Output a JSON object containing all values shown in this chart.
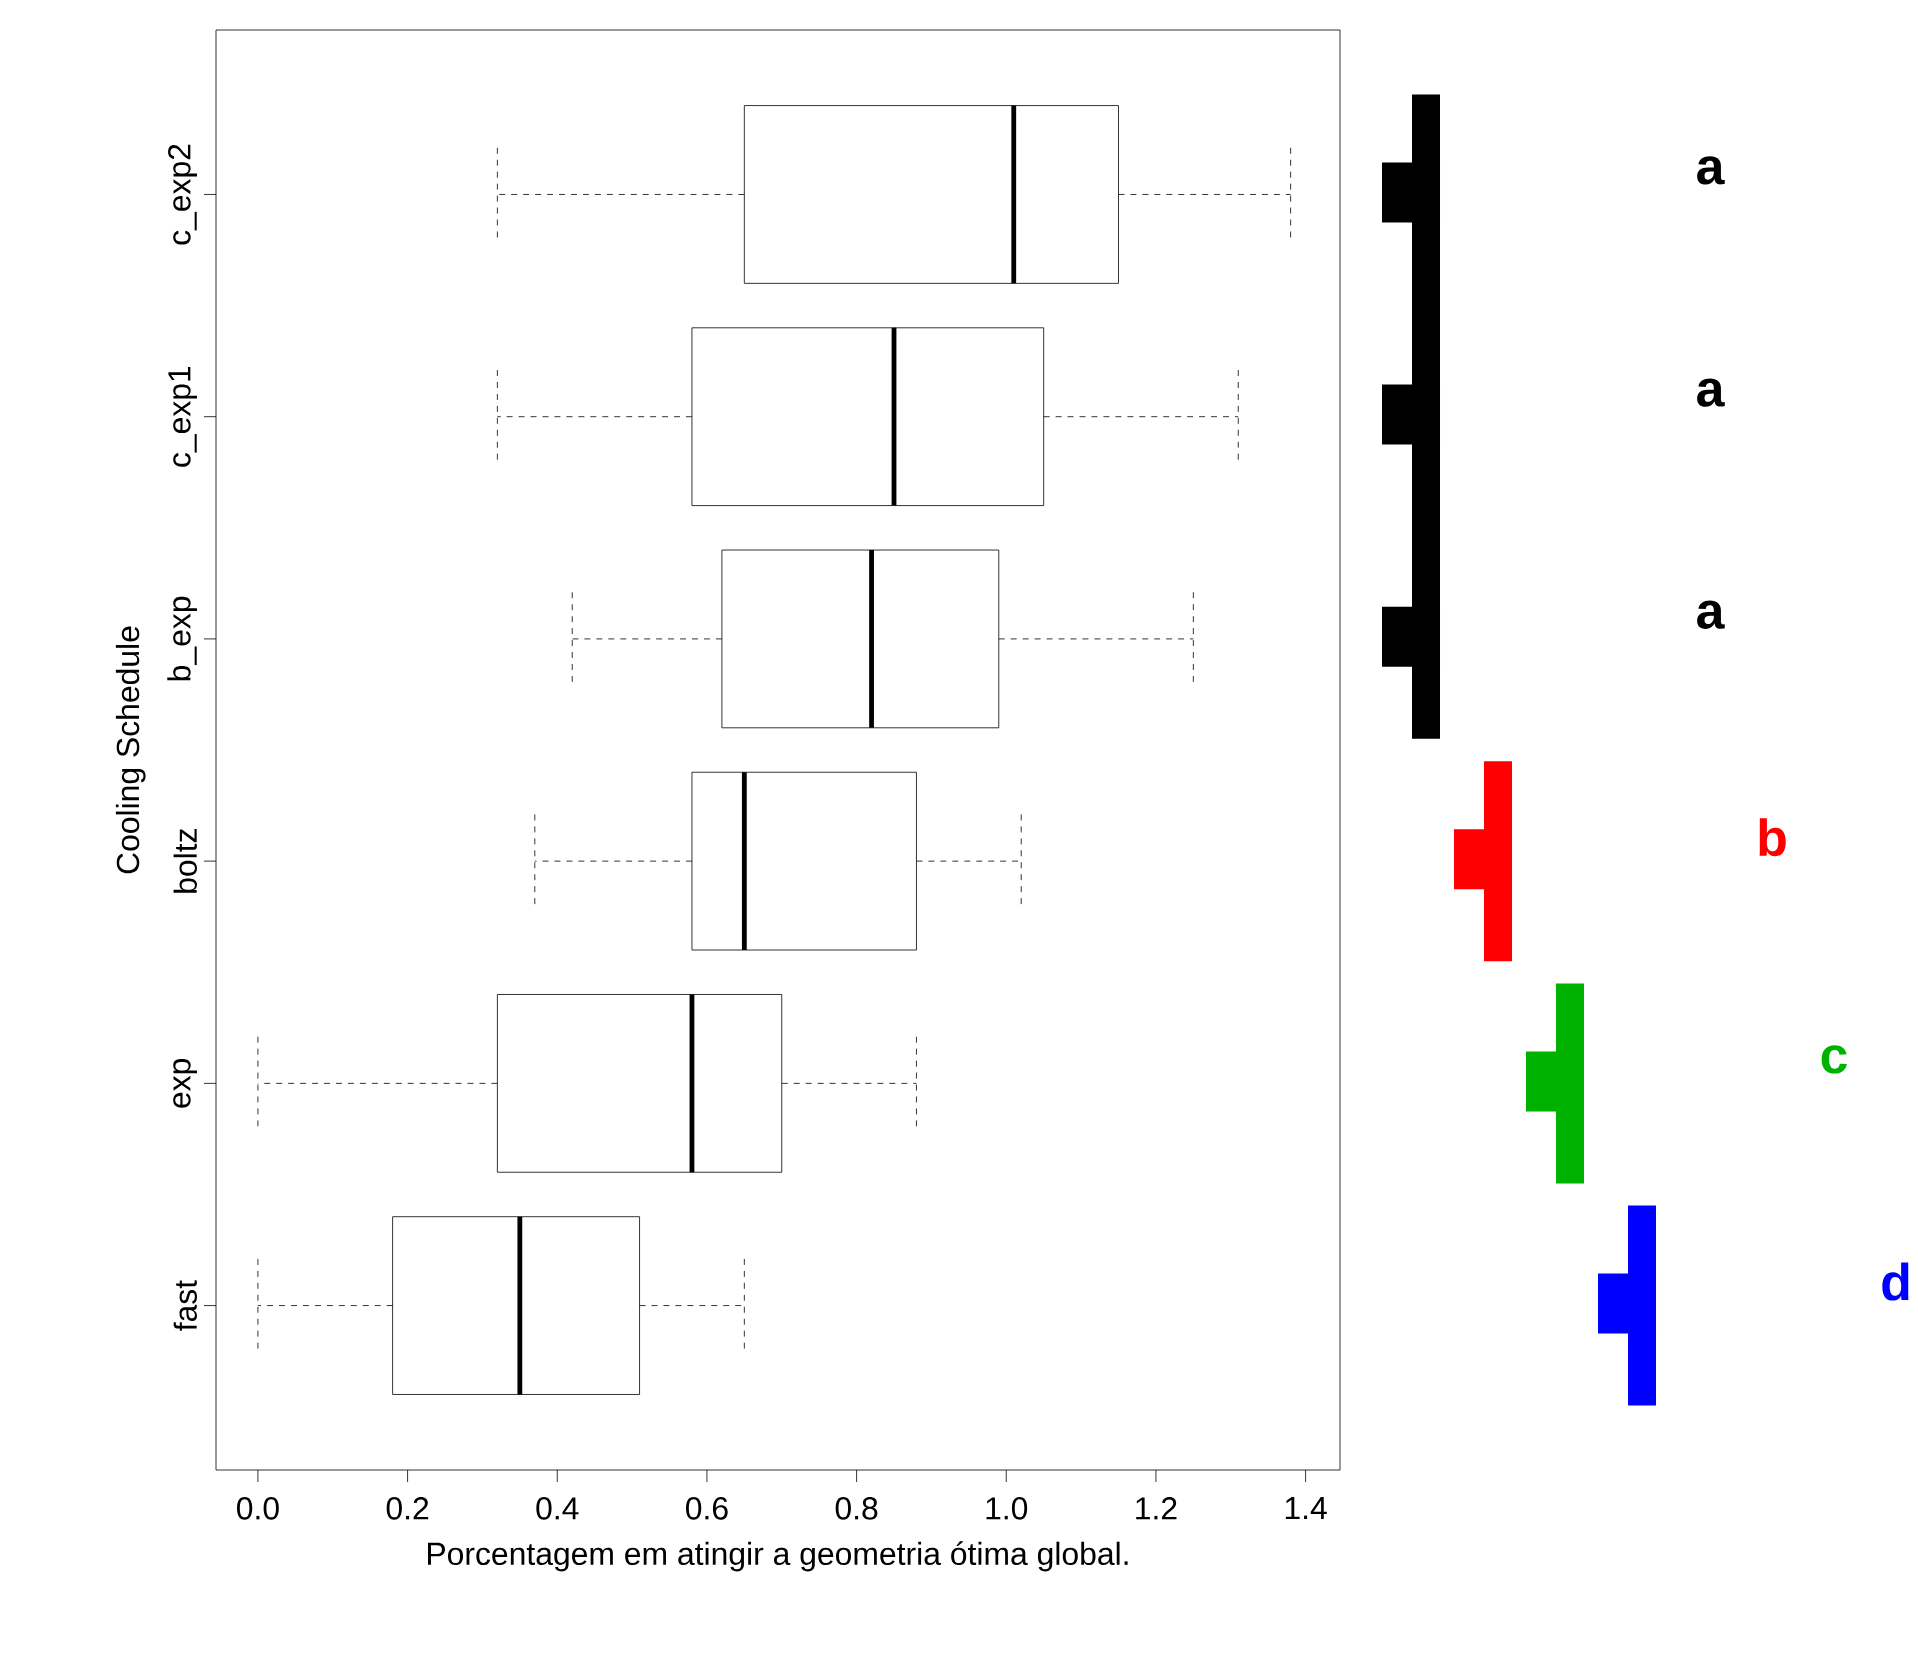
{
  "chart_data": {
    "type": "box",
    "orientation": "horizontal",
    "xlabel": "Porcentagem em atingir a geometria ótima global.",
    "ylabel": "Cooling Schedule",
    "categories": [
      "c_exp2",
      "c_exp1",
      "b_exp",
      "boltz",
      "exp",
      "fast"
    ],
    "boxes": [
      {
        "low": 0.32,
        "q1": 0.65,
        "median": 1.01,
        "q3": 1.15,
        "high": 1.38
      },
      {
        "low": 0.32,
        "q1": 0.58,
        "median": 0.85,
        "q3": 1.05,
        "high": 1.31
      },
      {
        "low": 0.42,
        "q1": 0.62,
        "median": 0.82,
        "q3": 0.99,
        "high": 1.25
      },
      {
        "low": 0.37,
        "q1": 0.58,
        "median": 0.65,
        "q3": 0.88,
        "high": 1.02
      },
      {
        "low": 0,
        "q1": 0.32,
        "median": 0.58,
        "q3": 0.7,
        "high": 0.88
      },
      {
        "low": 0,
        "q1": 0.18,
        "median": 0.35,
        "q3": 0.51,
        "high": 0.65
      }
    ],
    "xlim": [
      -0.056,
      1.446
    ],
    "xticks": [
      {
        "value": 0,
        "label": "0.0"
      },
      0.2,
      0.4,
      0.6,
      0.8,
      {
        "value": 1,
        "label": "1.0"
      },
      1.2,
      1.4
    ],
    "annotations": [
      "a",
      "a",
      "a",
      "b",
      "c",
      "d"
    ]
  }
}
